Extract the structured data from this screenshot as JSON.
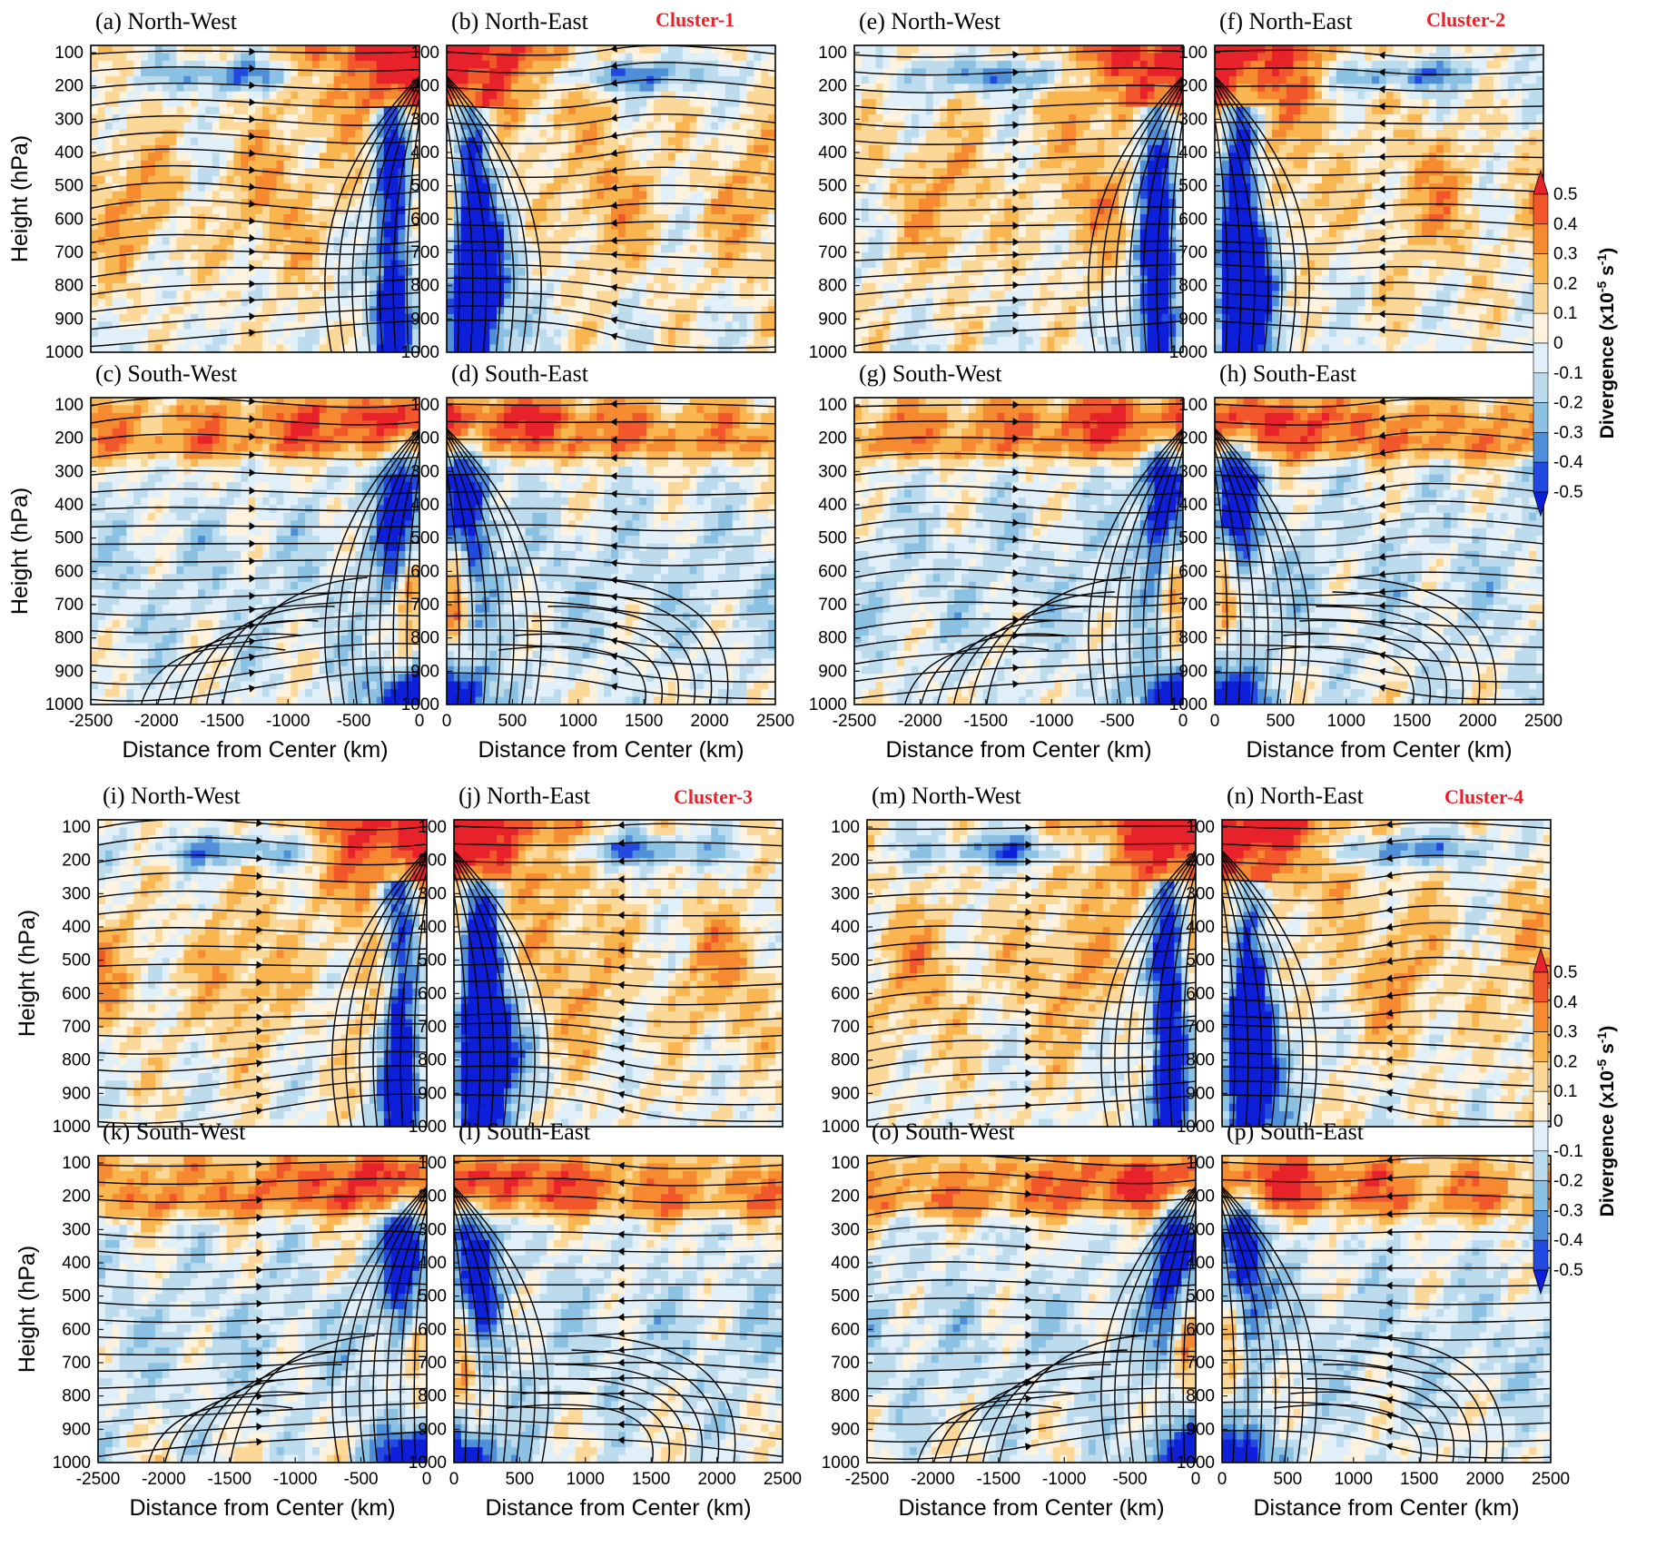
{
  "figure": {
    "clusters": [
      {
        "label": "Cluster-1"
      },
      {
        "label": "Cluster-2"
      },
      {
        "label": "Cluster-3"
      },
      {
        "label": "Cluster-4"
      }
    ]
  },
  "chart_data": {
    "type": "heatmap",
    "description_quantity": "Divergence with streamlines",
    "ylabel": "Height (hPa)",
    "xlabel": "Distance from Center (km)",
    "y_ticks": [
      "100",
      "200",
      "300",
      "400",
      "500",
      "600",
      "700",
      "800",
      "900",
      "1000"
    ],
    "ylim": [
      1000,
      100
    ],
    "x_ticks_west": [
      "-2500",
      "-2000",
      "-1500",
      "-1000",
      "-500",
      "0"
    ],
    "x_ticks_east": [
      "0",
      "500",
      "1000",
      "1500",
      "2000",
      "2500"
    ],
    "xlim_west": [
      -2500,
      0
    ],
    "xlim_east": [
      0,
      2500
    ],
    "colorbar": {
      "title_prefix": "Divergence (x10",
      "title_sup1": "-5",
      "title_mid": " s",
      "title_sup2": "-1",
      "title_suffix": ")",
      "levels": [
        "0.5",
        "0.4",
        "0.3",
        "0.2",
        "0.1",
        "0",
        "-0.1",
        "-0.2",
        "-0.3",
        "-0.4",
        "-0.5"
      ],
      "range": [
        -0.5,
        0.5
      ],
      "colors": [
        "#e8222a",
        "#f2572c",
        "#f68a31",
        "#f9b650",
        "#fcd898",
        "#fdf2de",
        "#e1f0f8",
        "#bcdcee",
        "#8bc1e2",
        "#4f8fd8",
        "#2249e0",
        "#0d1fd8"
      ]
    },
    "panels": [
      {
        "id": "a",
        "title": "(a) North-West",
        "side": "west",
        "cluster": 1
      },
      {
        "id": "b",
        "title": "(b) North-East",
        "side": "east",
        "cluster": 1
      },
      {
        "id": "c",
        "title": "(c) South-West",
        "side": "west",
        "cluster": 1
      },
      {
        "id": "d",
        "title": "(d) South-East",
        "side": "east",
        "cluster": 1
      },
      {
        "id": "e",
        "title": "(e) North-West",
        "side": "west",
        "cluster": 2
      },
      {
        "id": "f",
        "title": "(f) North-East",
        "side": "east",
        "cluster": 2
      },
      {
        "id": "g",
        "title": "(g) South-West",
        "side": "west",
        "cluster": 2
      },
      {
        "id": "h",
        "title": "(h) South-East",
        "side": "east",
        "cluster": 2
      },
      {
        "id": "i",
        "title": "(i) North-West",
        "side": "west",
        "cluster": 3
      },
      {
        "id": "j",
        "title": "(j) North-East",
        "side": "east",
        "cluster": 3
      },
      {
        "id": "k",
        "title": "(k) South-West",
        "side": "west",
        "cluster": 3
      },
      {
        "id": "l",
        "title": "(l) South-East",
        "side": "east",
        "cluster": 3
      },
      {
        "id": "m",
        "title": "(m) North-West",
        "side": "west",
        "cluster": 4
      },
      {
        "id": "n",
        "title": "(n) North-East",
        "side": "east",
        "cluster": 4
      },
      {
        "id": "o",
        "title": "(o) South-West",
        "side": "west",
        "cluster": 4
      },
      {
        "id": "p",
        "title": "(p) South-East",
        "side": "east",
        "cluster": 4
      }
    ]
  }
}
